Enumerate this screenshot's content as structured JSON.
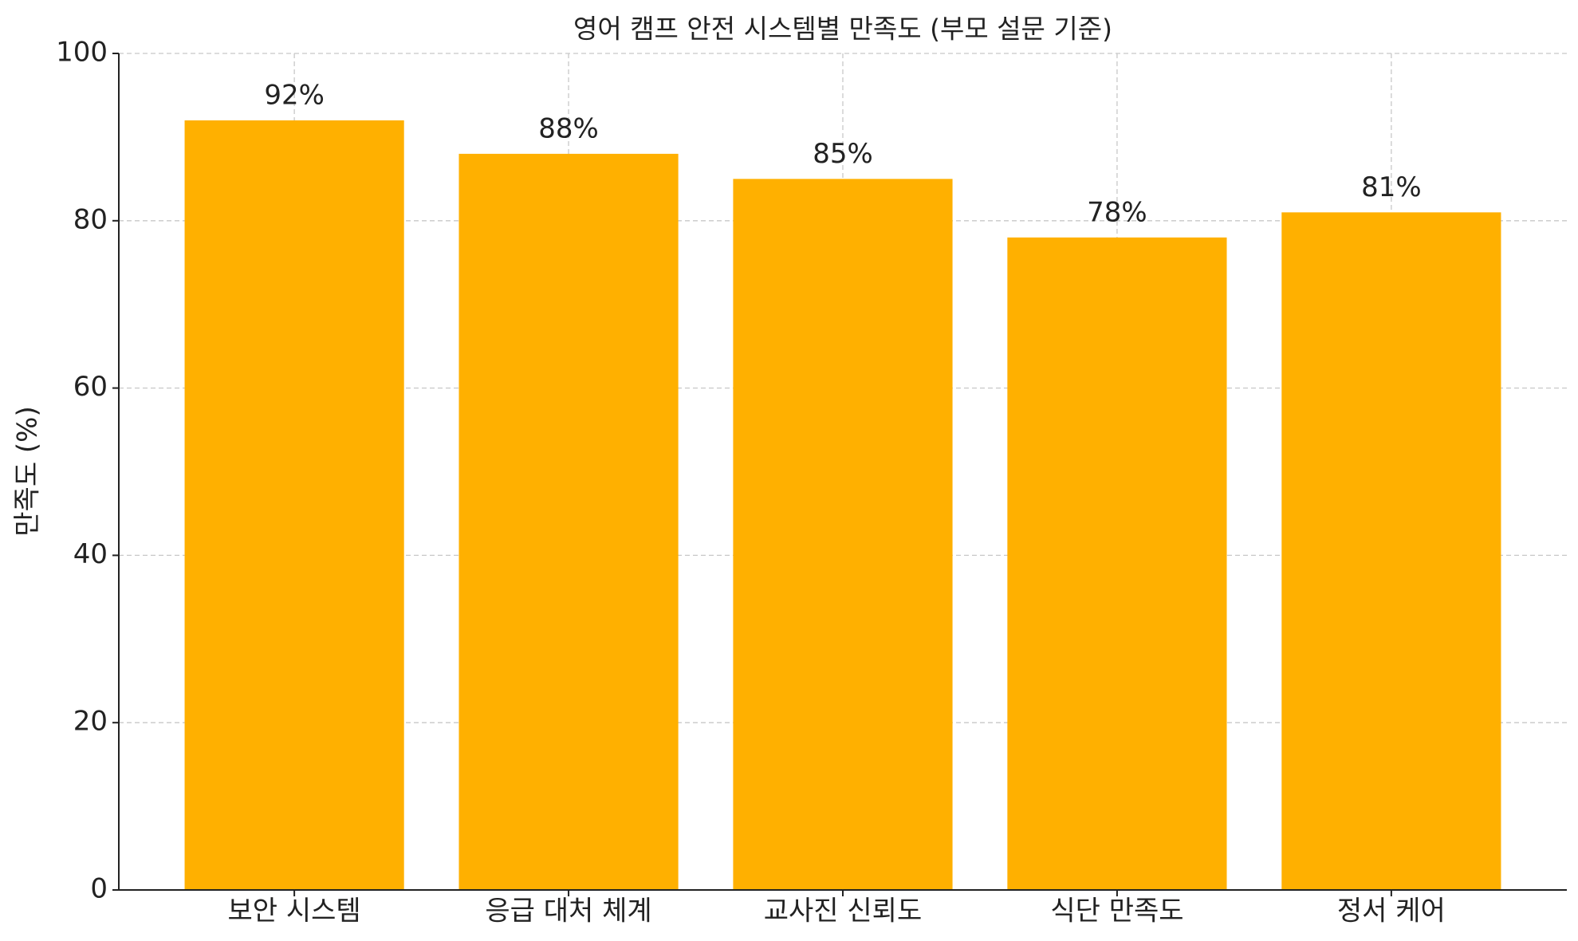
{
  "chart_data": {
    "type": "bar",
    "title": "영어 캠프 안전 시스템별 만족도 (부모 설문 기준)",
    "y_label": "만족도 (%)",
    "categories": [
      "보안 시스템",
      "응급 대처 체계",
      "교사진 신뢰도",
      "식단 만족도",
      "정서 케어"
    ],
    "values": [
      92,
      88,
      85,
      78,
      81
    ],
    "value_labels": [
      "92%",
      "88%",
      "85%",
      "78%",
      "81%"
    ],
    "color": "#ffb000",
    "ylim": [
      0,
      100
    ],
    "yticks": [
      0,
      20,
      40,
      60,
      80,
      100
    ],
    "grid": true
  }
}
